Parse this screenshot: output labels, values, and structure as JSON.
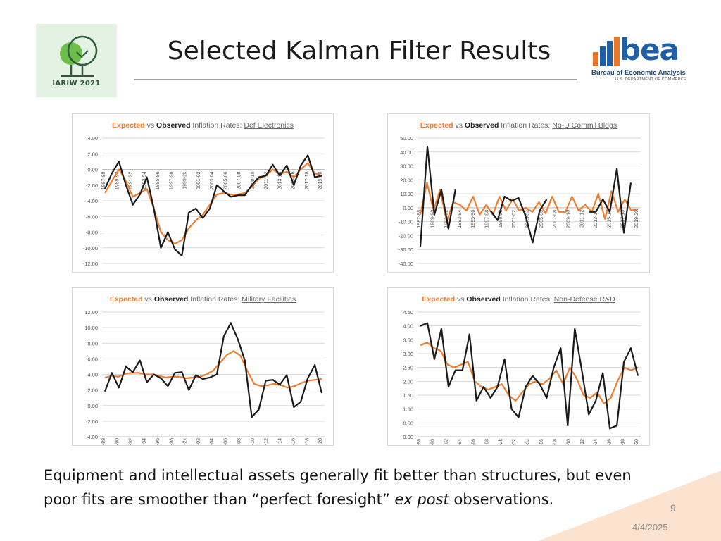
{
  "header": {
    "title": "Selected Kalman Filter Results",
    "iariw_logo_text": "IARIW 2021",
    "bea_logo_word": "bea",
    "bea_logo_name": "Bureau of Economic Analysis",
    "bea_logo_dept": "U.S. DEPARTMENT OF COMMERCE"
  },
  "colors": {
    "expected": "#ED7D31",
    "observed": "#1a1a1a",
    "grid": "#d9d9d9",
    "accent_corner": "#fbe3cf"
  },
  "caption": {
    "part1": "Equipment and intellectual assets generally fit better than structures, but even poor fits are smoother than “perfect foresight” ",
    "italic": "ex post",
    "part2": " observations."
  },
  "footer": {
    "slide_number": "9",
    "date": "4/4/2025"
  },
  "chart_data": [
    {
      "type": "line",
      "title": {
        "expected": "Expected",
        "vs": "vs",
        "observed": "Observed",
        "rest": "Inflation Rates:",
        "series_name": "Def Electronics"
      },
      "ylim": [
        -12,
        4
      ],
      "yticks": [
        "4.00",
        "2.00",
        "0.00",
        "-2.00",
        "-4.00",
        "-6.00",
        "-8.00",
        "-10.00",
        "-12.00"
      ],
      "ytick_values": [
        4,
        2,
        0,
        -2,
        -4,
        -6,
        -8,
        -10,
        -12
      ],
      "x_axis_at_zero": true,
      "xticks": [
        "1987-88",
        "1989-90",
        "1991-92",
        "1993-94",
        "1995-96",
        "1997-98",
        "1999-2k",
        "2001-02",
        "2003-04",
        "2005-06",
        "2007-08",
        "2009-10",
        "2011-12",
        "2013-14",
        "2015-16",
        "2017-18",
        "2019-20"
      ],
      "series": [
        {
          "name": "Observed",
          "values": [
            -2.5,
            -0.5,
            1.0,
            -2.0,
            -4.5,
            -3.2,
            -1.0,
            -5.0,
            -10.0,
            -8.0,
            -10.2,
            -11.0,
            -5.5,
            -5.0,
            -6.2,
            -5.0,
            -2.0,
            -2.8,
            -3.5,
            -3.3,
            -3.3,
            -2.0,
            -1.0,
            -0.8,
            0.6,
            -0.8,
            0.5,
            -2.0,
            0.5,
            1.8,
            -1.0,
            -0.8
          ]
        },
        {
          "name": "Expected",
          "values": [
            -3.0,
            -1.5,
            0.0,
            -1.5,
            -3.5,
            -3.0,
            -2.5,
            -5.0,
            -8.0,
            -9.0,
            -9.5,
            -9.0,
            -7.5,
            -6.5,
            -5.8,
            -4.5,
            -3.2,
            -3.0,
            -3.2,
            -3.2,
            -3.0,
            -2.2,
            -1.2,
            -0.8,
            0.0,
            -0.6,
            -0.3,
            -1.0,
            0.0,
            0.8,
            -0.5,
            -0.8
          ]
        }
      ]
    },
    {
      "type": "line",
      "title": {
        "expected": "Expected",
        "vs": "vs",
        "observed": "Observed",
        "rest": "Inflation Rates:",
        "series_name": "No-D Comm'l Bldgs"
      },
      "ylim": [
        -40,
        50
      ],
      "yticks": [
        "50.00",
        "40.00",
        "30.00",
        "20.00",
        "10.00",
        "0.00",
        "-10.00",
        "-20.00",
        "-30.00",
        "-40.00"
      ],
      "ytick_values": [
        50,
        40,
        30,
        20,
        10,
        0,
        -10,
        -20,
        -30,
        -40
      ],
      "x_axis_at_zero": true,
      "xticks": [
        "1987-88",
        "1989-90",
        "1991-92",
        "1993-94",
        "1995-96",
        "1997-98",
        "1999-2k",
        "2001-02",
        "2003-04",
        "2005-06",
        "2007-08",
        "2009-10",
        "2011-12",
        "2013-14",
        "2015-16",
        "2017-18",
        "2019-20"
      ],
      "series": [
        {
          "name": "Observed",
          "values": [
            -28,
            44,
            -5,
            13,
            -15,
            13,
            null,
            null,
            null,
            null,
            -2,
            -9,
            8,
            5,
            7,
            -6,
            -25,
            -2,
            6,
            null,
            null,
            null,
            null,
            null,
            -3,
            -3,
            6,
            -3,
            28,
            -18,
            18,
            null
          ]
        },
        {
          "name": "Expected",
          "values": [
            -5,
            18,
            -2,
            13,
            -10,
            4,
            2,
            -2,
            8,
            -5,
            2,
            -5,
            8,
            -2,
            6,
            -2,
            0,
            -3,
            4,
            -4,
            8,
            -3,
            -3,
            8,
            -2,
            2,
            -3,
            10,
            -8,
            12,
            -3,
            6,
            -2,
            -1
          ]
        }
      ]
    },
    {
      "type": "line",
      "title": {
        "expected": "Expected",
        "vs": "vs",
        "observed": "Observed",
        "rest": "Inflation Rates:",
        "series_name": "Military Facilities"
      },
      "ylim": [
        -4,
        12
      ],
      "yticks": [
        "12.00",
        "10.00",
        "8.00",
        "6.00",
        "4.00",
        "2.00",
        "0.00",
        "-2.00",
        "-4.00"
      ],
      "ytick_values": [
        12,
        10,
        8,
        6,
        4,
        2,
        0,
        -2,
        -4
      ],
      "x_axis_at_zero": false,
      "xticks": [
        "1987-88",
        "1989-90",
        "1991-92",
        "1993-94",
        "1995-96",
        "1997-98",
        "1999-2k",
        "2001-02",
        "2003-04",
        "2005-06",
        "2007-08",
        "2009-10",
        "2011-12",
        "2013-14",
        "2015-16",
        "2017-18",
        "2019-20"
      ],
      "series": [
        {
          "name": "Observed",
          "values": [
            1.8,
            4.2,
            2.3,
            5.0,
            4.3,
            5.8,
            3.0,
            4.0,
            3.5,
            2.5,
            4.2,
            4.3,
            2.0,
            3.9,
            3.4,
            3.6,
            4.0,
            8.9,
            10.6,
            8.5,
            5.8,
            -1.5,
            -0.5,
            3.2,
            3.3,
            2.7,
            3.9,
            -0.2,
            0.5,
            3.5,
            5.2,
            1.6
          ]
        },
        {
          "name": "Expected",
          "values": [
            3.6,
            3.8,
            3.7,
            4.1,
            4.2,
            4.2,
            4.0,
            4.0,
            3.8,
            3.6,
            3.7,
            3.7,
            3.5,
            3.6,
            3.7,
            4.0,
            4.5,
            5.5,
            6.5,
            7.0,
            6.4,
            4.5,
            2.8,
            2.5,
            2.6,
            2.8,
            2.6,
            2.3,
            2.5,
            2.9,
            3.2,
            3.3,
            3.4
          ]
        }
      ]
    },
    {
      "type": "line",
      "title": {
        "expected": "Expected",
        "vs": "vs",
        "observed": "Observed",
        "rest": "Inflation Rates:",
        "series_name": "Non-Defense R&D"
      },
      "ylim": [
        0,
        4.5
      ],
      "yticks": [
        "4.50",
        "4.00",
        "3.50",
        "3.00",
        "2.50",
        "2.00",
        "1.50",
        "1.00",
        "0.50",
        "0.00"
      ],
      "ytick_values": [
        4.5,
        4.0,
        3.5,
        3.0,
        2.5,
        2.0,
        1.5,
        1.0,
        0.5,
        0.0
      ],
      "x_axis_at_zero": true,
      "xticks": [
        "1987-88",
        "1989-90",
        "1991-92",
        "1993-94",
        "1995-96",
        "1997-98",
        "1999-2k",
        "2001-02",
        "2003-04",
        "2005-06",
        "2007-08",
        "2009-10",
        "2011-12",
        "2013-14",
        "2015-16",
        "2017-18",
        "2019-20"
      ],
      "series": [
        {
          "name": "Observed",
          "values": [
            4.0,
            4.1,
            2.8,
            3.9,
            1.8,
            2.4,
            2.4,
            3.7,
            1.3,
            1.8,
            1.4,
            1.8,
            2.8,
            1.0,
            0.7,
            1.8,
            2.2,
            1.9,
            1.4,
            2.5,
            3.2,
            0.4,
            3.9,
            2.4,
            0.8,
            1.3,
            2.3,
            0.3,
            0.4,
            2.7,
            3.2,
            2.2
          ]
        },
        {
          "name": "Expected",
          "values": [
            3.3,
            3.4,
            3.2,
            3.1,
            2.6,
            2.5,
            2.6,
            2.7,
            2.0,
            1.8,
            1.7,
            1.8,
            1.9,
            1.5,
            1.3,
            1.6,
            1.9,
            2.0,
            1.9,
            2.1,
            2.4,
            1.9,
            2.5,
            2.1,
            1.5,
            1.4,
            1.6,
            1.2,
            1.4,
            2.0,
            2.5,
            2.4,
            2.5
          ]
        }
      ]
    }
  ]
}
